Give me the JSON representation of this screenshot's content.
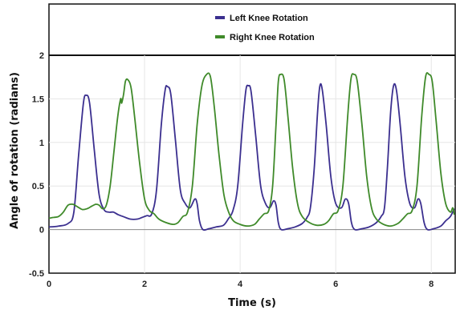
{
  "chart_data": {
    "type": "line",
    "title": "",
    "xlabel": "Time (s)",
    "ylabel": "Angle of rotation (radians)",
    "xlim": [
      0,
      8.5
    ],
    "ylim": [
      -0.5,
      2
    ],
    "x_ticks": [
      0,
      2,
      4,
      6,
      8
    ],
    "x_tick_labels": [
      "0",
      "2",
      "4",
      "6",
      "8"
    ],
    "y_ticks": [
      -0.5,
      0,
      0.5,
      1,
      1.5,
      2
    ],
    "y_tick_labels": [
      "-0.5",
      "0",
      "0.5",
      "1",
      "1.5",
      "2"
    ],
    "grid": true,
    "legend_position": "top-center",
    "series": [
      {
        "name": "Left Knee Rotation",
        "color": "#3b2f8f",
        "points": [
          [
            0.0,
            0.03
          ],
          [
            0.2,
            0.04
          ],
          [
            0.4,
            0.07
          ],
          [
            0.52,
            0.2
          ],
          [
            0.62,
            0.85
          ],
          [
            0.72,
            1.45
          ],
          [
            0.78,
            1.54
          ],
          [
            0.85,
            1.45
          ],
          [
            0.95,
            0.9
          ],
          [
            1.05,
            0.4
          ],
          [
            1.15,
            0.23
          ],
          [
            1.25,
            0.2
          ],
          [
            1.35,
            0.2
          ],
          [
            1.45,
            0.17
          ],
          [
            1.55,
            0.15
          ],
          [
            1.7,
            0.12
          ],
          [
            1.85,
            0.12
          ],
          [
            1.95,
            0.14
          ],
          [
            2.05,
            0.16
          ],
          [
            2.15,
            0.18
          ],
          [
            2.25,
            0.45
          ],
          [
            2.35,
            1.2
          ],
          [
            2.43,
            1.6
          ],
          [
            2.48,
            1.64
          ],
          [
            2.55,
            1.55
          ],
          [
            2.65,
            1.0
          ],
          [
            2.75,
            0.45
          ],
          [
            2.85,
            0.3
          ],
          [
            2.95,
            0.25
          ],
          [
            3.05,
            0.35
          ],
          [
            3.1,
            0.3
          ],
          [
            3.15,
            0.1
          ],
          [
            3.22,
            0.0
          ],
          [
            3.35,
            0.01
          ],
          [
            3.5,
            0.03
          ],
          [
            3.65,
            0.05
          ],
          [
            3.75,
            0.12
          ],
          [
            3.85,
            0.22
          ],
          [
            3.95,
            0.5
          ],
          [
            4.05,
            1.2
          ],
          [
            4.12,
            1.6
          ],
          [
            4.17,
            1.65
          ],
          [
            4.23,
            1.58
          ],
          [
            4.33,
            1.05
          ],
          [
            4.43,
            0.5
          ],
          [
            4.53,
            0.3
          ],
          [
            4.62,
            0.25
          ],
          [
            4.7,
            0.33
          ],
          [
            4.75,
            0.28
          ],
          [
            4.8,
            0.08
          ],
          [
            4.86,
            0.0
          ],
          [
            5.0,
            0.01
          ],
          [
            5.15,
            0.03
          ],
          [
            5.3,
            0.07
          ],
          [
            5.4,
            0.14
          ],
          [
            5.47,
            0.25
          ],
          [
            5.55,
            0.7
          ],
          [
            5.62,
            1.35
          ],
          [
            5.67,
            1.65
          ],
          [
            5.72,
            1.6
          ],
          [
            5.8,
            1.2
          ],
          [
            5.9,
            0.6
          ],
          [
            6.0,
            0.3
          ],
          [
            6.12,
            0.25
          ],
          [
            6.2,
            0.35
          ],
          [
            6.27,
            0.3
          ],
          [
            6.33,
            0.08
          ],
          [
            6.4,
            0.0
          ],
          [
            6.55,
            0.01
          ],
          [
            6.7,
            0.03
          ],
          [
            6.85,
            0.08
          ],
          [
            6.95,
            0.15
          ],
          [
            7.02,
            0.25
          ],
          [
            7.08,
            0.7
          ],
          [
            7.15,
            1.35
          ],
          [
            7.21,
            1.65
          ],
          [
            7.27,
            1.6
          ],
          [
            7.35,
            1.2
          ],
          [
            7.45,
            0.6
          ],
          [
            7.55,
            0.3
          ],
          [
            7.65,
            0.25
          ],
          [
            7.72,
            0.35
          ],
          [
            7.78,
            0.3
          ],
          [
            7.85,
            0.08
          ],
          [
            7.92,
            0.0
          ],
          [
            8.05,
            0.01
          ],
          [
            8.2,
            0.04
          ],
          [
            8.3,
            0.1
          ],
          [
            8.4,
            0.15
          ],
          [
            8.48,
            0.24
          ]
        ]
      },
      {
        "name": "Right Knee Rotation",
        "color": "#3f8a2a",
        "points": [
          [
            0.0,
            0.13
          ],
          [
            0.1,
            0.14
          ],
          [
            0.2,
            0.15
          ],
          [
            0.3,
            0.2
          ],
          [
            0.4,
            0.28
          ],
          [
            0.5,
            0.29
          ],
          [
            0.6,
            0.26
          ],
          [
            0.7,
            0.23
          ],
          [
            0.8,
            0.24
          ],
          [
            0.9,
            0.27
          ],
          [
            0.98,
            0.29
          ],
          [
            1.05,
            0.28
          ],
          [
            1.12,
            0.24
          ],
          [
            1.2,
            0.28
          ],
          [
            1.28,
            0.5
          ],
          [
            1.36,
            0.9
          ],
          [
            1.44,
            1.3
          ],
          [
            1.5,
            1.5
          ],
          [
            1.52,
            1.45
          ],
          [
            1.56,
            1.55
          ],
          [
            1.6,
            1.7
          ],
          [
            1.65,
            1.72
          ],
          [
            1.72,
            1.62
          ],
          [
            1.8,
            1.25
          ],
          [
            1.9,
            0.75
          ],
          [
            2.0,
            0.35
          ],
          [
            2.1,
            0.22
          ],
          [
            2.2,
            0.18
          ],
          [
            2.3,
            0.12
          ],
          [
            2.45,
            0.08
          ],
          [
            2.6,
            0.06
          ],
          [
            2.7,
            0.08
          ],
          [
            2.8,
            0.15
          ],
          [
            2.9,
            0.2
          ],
          [
            3.0,
            0.5
          ],
          [
            3.1,
            1.2
          ],
          [
            3.2,
            1.65
          ],
          [
            3.3,
            1.78
          ],
          [
            3.38,
            1.75
          ],
          [
            3.46,
            1.4
          ],
          [
            3.56,
            0.85
          ],
          [
            3.66,
            0.4
          ],
          [
            3.76,
            0.2
          ],
          [
            3.86,
            0.1
          ],
          [
            4.0,
            0.06
          ],
          [
            4.15,
            0.04
          ],
          [
            4.3,
            0.06
          ],
          [
            4.4,
            0.12
          ],
          [
            4.5,
            0.18
          ],
          [
            4.6,
            0.22
          ],
          [
            4.68,
            0.5
          ],
          [
            4.75,
            1.2
          ],
          [
            4.8,
            1.7
          ],
          [
            4.85,
            1.78
          ],
          [
            4.92,
            1.72
          ],
          [
            5.0,
            1.3
          ],
          [
            5.1,
            0.7
          ],
          [
            5.2,
            0.3
          ],
          [
            5.3,
            0.15
          ],
          [
            5.45,
            0.08
          ],
          [
            5.6,
            0.05
          ],
          [
            5.75,
            0.06
          ],
          [
            5.85,
            0.1
          ],
          [
            5.95,
            0.18
          ],
          [
            6.05,
            0.22
          ],
          [
            6.15,
            0.5
          ],
          [
            6.25,
            1.3
          ],
          [
            6.32,
            1.73
          ],
          [
            6.38,
            1.78
          ],
          [
            6.45,
            1.7
          ],
          [
            6.55,
            1.2
          ],
          [
            6.65,
            0.6
          ],
          [
            6.75,
            0.25
          ],
          [
            6.85,
            0.12
          ],
          [
            7.0,
            0.06
          ],
          [
            7.15,
            0.04
          ],
          [
            7.3,
            0.07
          ],
          [
            7.4,
            0.12
          ],
          [
            7.5,
            0.18
          ],
          [
            7.6,
            0.22
          ],
          [
            7.7,
            0.5
          ],
          [
            7.8,
            1.3
          ],
          [
            7.88,
            1.75
          ],
          [
            7.95,
            1.78
          ],
          [
            8.02,
            1.7
          ],
          [
            8.1,
            1.25
          ],
          [
            8.2,
            0.65
          ],
          [
            8.3,
            0.3
          ],
          [
            8.4,
            0.2
          ],
          [
            8.45,
            0.25
          ],
          [
            8.48,
            0.17
          ]
        ]
      }
    ]
  }
}
